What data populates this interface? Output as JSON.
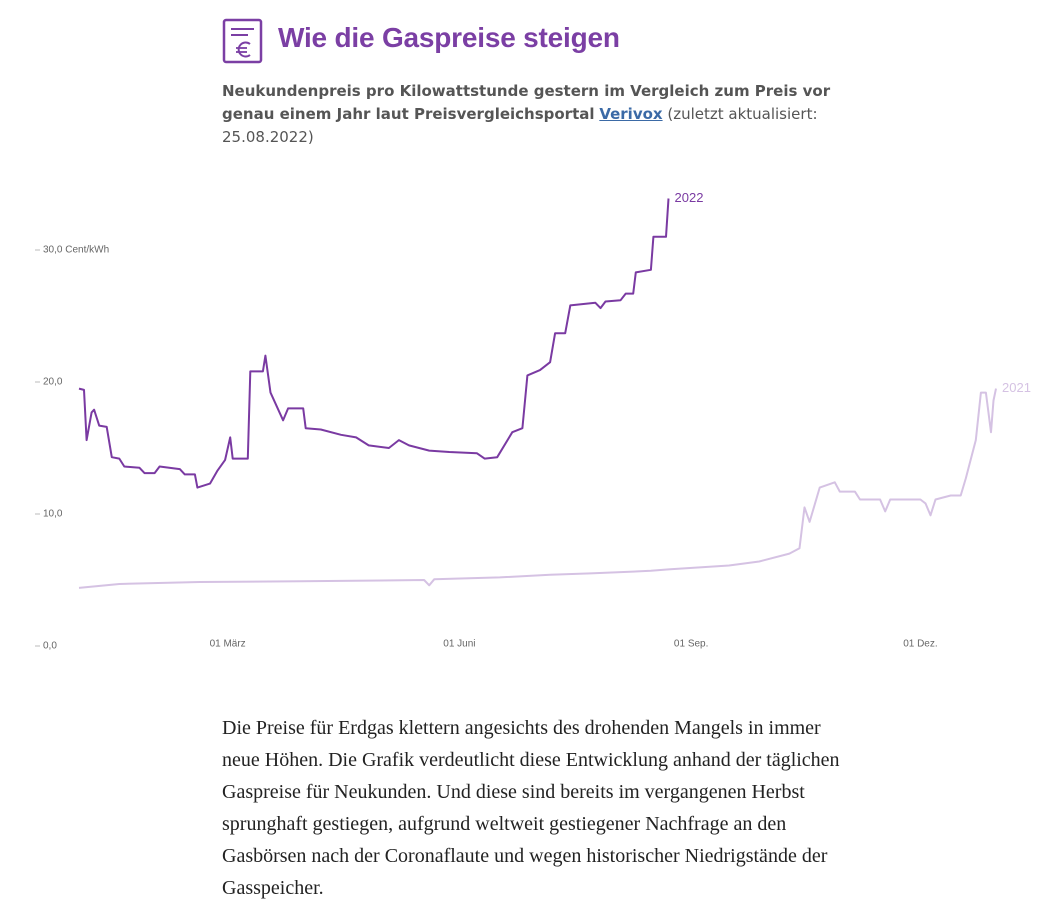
{
  "header": {
    "title": "Wie die Gaspreise steigen",
    "subtitle": "Neukundenpreis pro Kilowattstunde gestern im Vergleich zum Preis vor genau einem Jahr laut Preisvergleichsportal",
    "link": "Verivox",
    "updated": "(zuletzt aktualisiert: 25.08.2022)"
  },
  "chart_data": {
    "type": "line",
    "xlim": [
      1,
      365
    ],
    "xticks": [
      {
        "value": 60,
        "label": "01 März"
      },
      {
        "value": 152,
        "label": "01 Juni"
      },
      {
        "value": 244,
        "label": "01 Sep."
      },
      {
        "value": 335,
        "label": "01 Dez."
      }
    ],
    "ylim": [
      0,
      35
    ],
    "yticks": [
      {
        "value": 0,
        "label": "0,0"
      },
      {
        "value": 10,
        "label": "10,0"
      },
      {
        "value": 20,
        "label": "20,0"
      },
      {
        "value": 30,
        "label": "30,0 Cent/kWh"
      }
    ],
    "series": [
      {
        "name": "2022",
        "color": "#7a3aa2",
        "x": [
          1,
          3,
          4,
          6,
          7,
          9,
          12,
          14,
          17,
          19,
          25,
          27,
          31,
          33,
          41,
          43,
          47,
          48,
          53,
          56,
          59,
          61,
          62,
          68,
          69,
          74,
          75,
          77,
          82,
          84,
          90,
          91,
          97,
          105,
          111,
          116,
          124,
          128,
          132,
          140,
          148,
          159,
          162,
          167,
          173,
          177,
          179,
          184,
          188,
          190,
          194,
          196,
          206,
          208,
          210,
          216,
          218,
          221,
          222,
          228,
          229,
          234,
          235
        ],
        "values": [
          19.5,
          19.4,
          15.6,
          17.7,
          17.9,
          16.7,
          16.6,
          14.3,
          14.2,
          13.6,
          13.5,
          13.1,
          13.1,
          13.6,
          13.4,
          13.0,
          13.0,
          12.0,
          12.3,
          13.3,
          14.1,
          15.8,
          14.2,
          14.2,
          20.8,
          20.8,
          22.0,
          19.2,
          17.1,
          18.0,
          18.0,
          16.5,
          16.4,
          16.0,
          15.8,
          15.2,
          15.0,
          15.6,
          15.2,
          14.8,
          14.7,
          14.6,
          14.2,
          14.3,
          16.2,
          16.5,
          20.5,
          20.9,
          21.5,
          23.7,
          23.7,
          25.8,
          26.0,
          25.6,
          26.1,
          26.2,
          26.7,
          26.7,
          28.3,
          28.5,
          31.0,
          31.0,
          33.9
        ]
      },
      {
        "name": "2021",
        "color": "#d5c2e3",
        "x": [
          1,
          17,
          49,
          89,
          138,
          140,
          142,
          168,
          188,
          204,
          228,
          235,
          259,
          271,
          283,
          287,
          289,
          291,
          295,
          301,
          303,
          309,
          311,
          319,
          321,
          323,
          335,
          337,
          339,
          341,
          347,
          351,
          353,
          357,
          359,
          361,
          363,
          364,
          365
        ],
        "values": [
          4.4,
          4.7,
          4.85,
          4.9,
          5.0,
          4.6,
          5.05,
          5.2,
          5.4,
          5.5,
          5.7,
          5.8,
          6.1,
          6.4,
          7.0,
          7.4,
          10.5,
          9.4,
          12.0,
          12.4,
          11.7,
          11.7,
          11.1,
          11.1,
          10.2,
          11.1,
          11.1,
          10.8,
          9.9,
          11.1,
          11.4,
          11.4,
          12.7,
          15.6,
          19.2,
          19.2,
          16.2,
          18.6,
          19.5
        ]
      }
    ]
  },
  "body": {
    "paragraph": "Die Preise für Erdgas klettern angesichts des drohenden Mangels in immer neue Höhen. Die Grafik verdeutlicht diese Entwicklung anhand der täglichen Gaspreise für Neukunden. Und diese sind bereits im vergangenen Herbst sprunghaft gestiegen, aufgrund weltweit gestiegener Nachfrage an den Gasbörsen nach der Coronaflaute und wegen historischer Niedrigstände der Gasspeicher."
  }
}
